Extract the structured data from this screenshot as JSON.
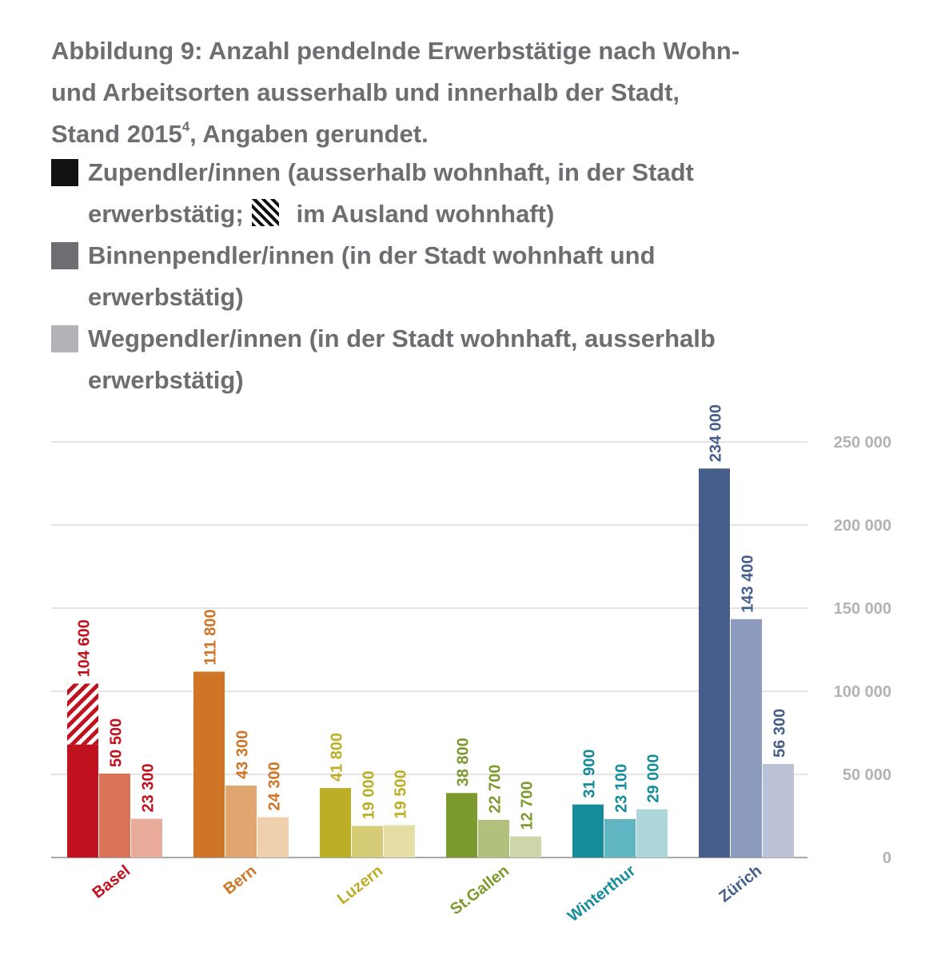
{
  "title": {
    "line1": "Abbildung 9: Anzahl pendelnde Erwerbstätige nach Wohn-",
    "line2": "und Arbeitsorten ausserhalb und innerhalb der Stadt,",
    "line3a": "Stand 2015",
    "sup": "4",
    "line3b": ", Angaben gerundet."
  },
  "legend": {
    "zupendler_a": "Zupendler/innen (ausserhalb wohnhaft, in der Stadt",
    "zupendler_b": "erwerbstätig;",
    "ausland": "im Ausland wohnhaft)",
    "binnen_a": "Binnenpendler/innen (in der Stadt wohnhaft und",
    "binnen_b": "erwerbstätig)",
    "weg_a": "Wegpendler/innen (in der Stadt wohnhaft, ausserhalb",
    "weg_b": "erwerbstätig)",
    "colors": {
      "zupendler": "#111111",
      "binnen": "#6d6e71",
      "weg": "#b1b3b6"
    }
  },
  "chart_data": {
    "type": "bar",
    "categories": [
      "Basel",
      "Bern",
      "Luzern",
      "St.Gallen",
      "Winterthur",
      "Zürich"
    ],
    "series": [
      {
        "name": "Zupendler/innen",
        "values": [
          104600,
          111800,
          41800,
          38800,
          31900,
          234000
        ],
        "labels": [
          "104 600",
          "111 800",
          "41 800",
          "38 800",
          "31 900",
          "234 000"
        ]
      },
      {
        "name": "Binnenpendler/innen",
        "values": [
          50500,
          43300,
          19000,
          22700,
          23100,
          143400
        ],
        "labels": [
          "50 500",
          "43 300",
          "19 000",
          "22 700",
          "23 100",
          "143 400"
        ]
      },
      {
        "name": "Wegpendler/innen",
        "values": [
          23300,
          24300,
          19500,
          12700,
          29000,
          56300
        ],
        "labels": [
          "23 300",
          "24 300",
          "19 500",
          "12 700",
          "29 000",
          "56 300"
        ]
      }
    ],
    "hatched_portion": {
      "series": "Zupendler/innen",
      "category": "Basel",
      "value_from": 68000,
      "value_to": 104600
    },
    "ylim": [
      0,
      250000
    ],
    "yticks": [
      0,
      50000,
      100000,
      150000,
      200000,
      250000
    ],
    "ytick_labels": [
      "0",
      "50 000",
      "100 000",
      "150 000",
      "200 000",
      "250 000"
    ],
    "grid": true,
    "city_colors": {
      "Basel": [
        "#c0111f",
        "#d87358",
        "#e9ac9a"
      ],
      "Bern": [
        "#cf7526",
        "#e1a66f",
        "#efcfae"
      ],
      "Luzern": [
        "#bcae26",
        "#d6cc78",
        "#e6dfa5"
      ],
      "St.Gallen": [
        "#7c9a2d",
        "#b1c07a",
        "#ccd6a8"
      ],
      "Winterthur": [
        "#158c9c",
        "#5fb6c2",
        "#add7dd"
      ],
      "Zürich": [
        "#465e8b",
        "#8c9bbd",
        "#bbc2d7"
      ]
    },
    "label_colors": {
      "Basel": "#c0111f",
      "Bern": "#cf7526",
      "Luzern": "#bcae26",
      "St.Gallen": "#7c9a2d",
      "Winterthur": "#158c9c",
      "Zürich": "#465e8b"
    }
  }
}
